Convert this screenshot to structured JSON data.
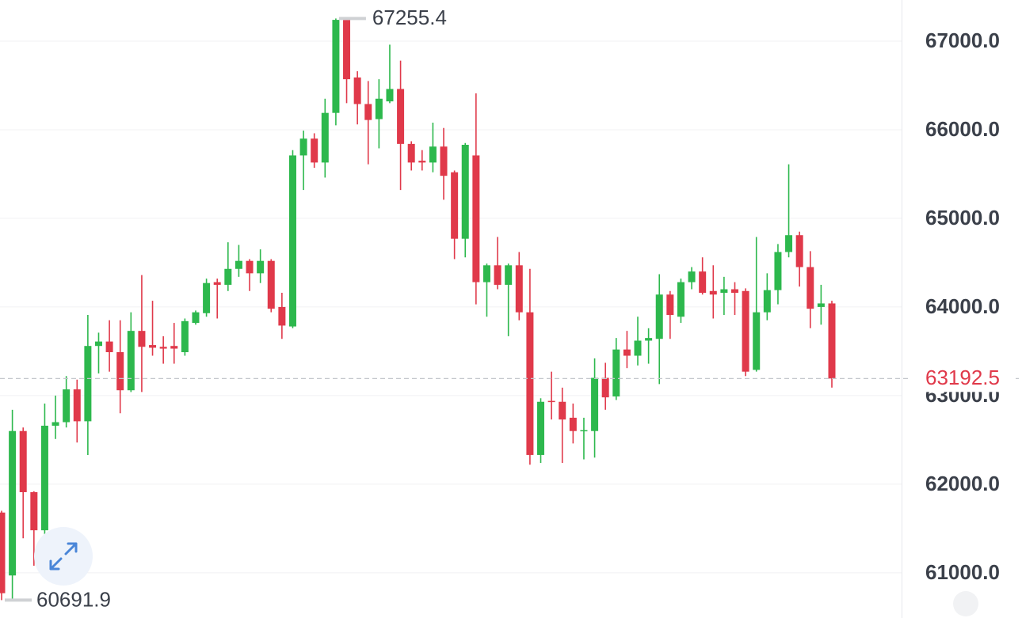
{
  "chart_data": {
    "type": "candlestick",
    "up_color": "#2db84d",
    "down_color": "#e0394a",
    "grid": true,
    "ylim": [
      60490,
      67464
    ],
    "yticks": [
      {
        "value": 61000,
        "label": "61000.0"
      },
      {
        "value": 62000,
        "label": "62000.0"
      },
      {
        "value": 63000,
        "label": "63000.0"
      },
      {
        "value": 64000,
        "label": "64000.0"
      },
      {
        "value": 65000,
        "label": "65000.0"
      },
      {
        "value": 66000,
        "label": "66000.0"
      },
      {
        "value": 67000,
        "label": "67000.0"
      }
    ],
    "max_marker": 67255.4,
    "min_marker": 60691.9,
    "last_price": 63192.5,
    "open": [
      61680,
      60970,
      62600,
      61910,
      61480,
      62660,
      62700,
      63070,
      62710,
      63560,
      63610,
      63490,
      63060,
      63730,
      63570,
      63550,
      63560,
      63490,
      63820,
      63930,
      64280,
      64250,
      64430,
      64520,
      64380,
      64520,
      64000,
      63780,
      65710,
      65900,
      65630,
      66190,
      67240,
      66590,
      66290,
      66120,
      66320,
      66460,
      65840,
      65650,
      65630,
      65810,
      65520,
      64770,
      65710,
      64280,
      64470,
      64250,
      64470,
      63940,
      62330,
      62940,
      62930,
      62750,
      62600,
      62600,
      63200,
      62990,
      63520,
      63450,
      63620,
      63640,
      64140,
      63890,
      64280,
      64400,
      64180,
      64160,
      64200,
      64180,
      63290,
      63940,
      64190,
      64620,
      64810,
      64450,
      64000,
      64040
    ],
    "high": [
      61700,
      62840,
      62640,
      61920,
      62910,
      63000,
      63220,
      63180,
      63910,
      63710,
      63850,
      63850,
      63940,
      64360,
      64070,
      63670,
      63820,
      63870,
      63960,
      64320,
      64320,
      64730,
      64700,
      64540,
      64650,
      64540,
      64160,
      65770,
      65990,
      65960,
      66350,
      67255.4,
      67255.4,
      66660,
      66550,
      66570,
      66960,
      66780,
      65870,
      65770,
      66080,
      66020,
      65540,
      65850,
      66410,
      64490,
      64790,
      64490,
      64620,
      64430,
      62970,
      63270,
      63090,
      62910,
      62750,
      63420,
      63370,
      63650,
      63730,
      63890,
      63760,
      64370,
      64180,
      64320,
      64450,
      64560,
      64470,
      64340,
      64280,
      64210,
      64790,
      64380,
      64710,
      65610,
      64850,
      64630,
      64250,
      64070
    ],
    "low": [
      60691.9,
      60700,
      61390,
      61080,
      61210,
      62510,
      62640,
      62470,
      62330,
      63250,
      63270,
      62800,
      63040,
      63040,
      63450,
      63360,
      63360,
      63450,
      63800,
      63890,
      63870,
      64180,
      64340,
      64180,
      64270,
      63940,
      63640,
      63760,
      65320,
      65570,
      65460,
      66050,
      66300,
      66060,
      65610,
      65790,
      66300,
      65320,
      65540,
      65540,
      65520,
      65210,
      64540,
      64560,
      64030,
      63890,
      64200,
      63670,
      63850,
      62220,
      62240,
      62730,
      62240,
      62460,
      62280,
      62300,
      62840,
      62950,
      63310,
      63340,
      63360,
      63130,
      63640,
      63820,
      64200,
      64140,
      63870,
      63910,
      63910,
      63220,
      63270,
      63850,
      64030,
      64560,
      64230,
      63760,
      63800,
      63090
    ],
    "close": [
      60770,
      62600,
      61910,
      61480,
      62660,
      62700,
      63070,
      62710,
      63560,
      63610,
      63490,
      63060,
      63730,
      63550,
      63540,
      63530,
      63530,
      63840,
      63940,
      64270,
      64250,
      64430,
      64520,
      64380,
      64520,
      63980,
      63790,
      65710,
      65900,
      65630,
      66190,
      67240,
      66570,
      66290,
      66110,
      66350,
      66460,
      65840,
      65630,
      65630,
      65810,
      65480,
      64770,
      65830,
      64280,
      64470,
      64250,
      64470,
      63940,
      62330,
      62930,
      62930,
      62730,
      62600,
      62610,
      63200,
      62980,
      63520,
      63450,
      63620,
      63650,
      64140,
      63910,
      64280,
      64400,
      64160,
      64140,
      64200,
      64160,
      63270,
      63940,
      64190,
      64620,
      64810,
      64450,
      63980,
      64040,
      63192.5
    ]
  }
}
